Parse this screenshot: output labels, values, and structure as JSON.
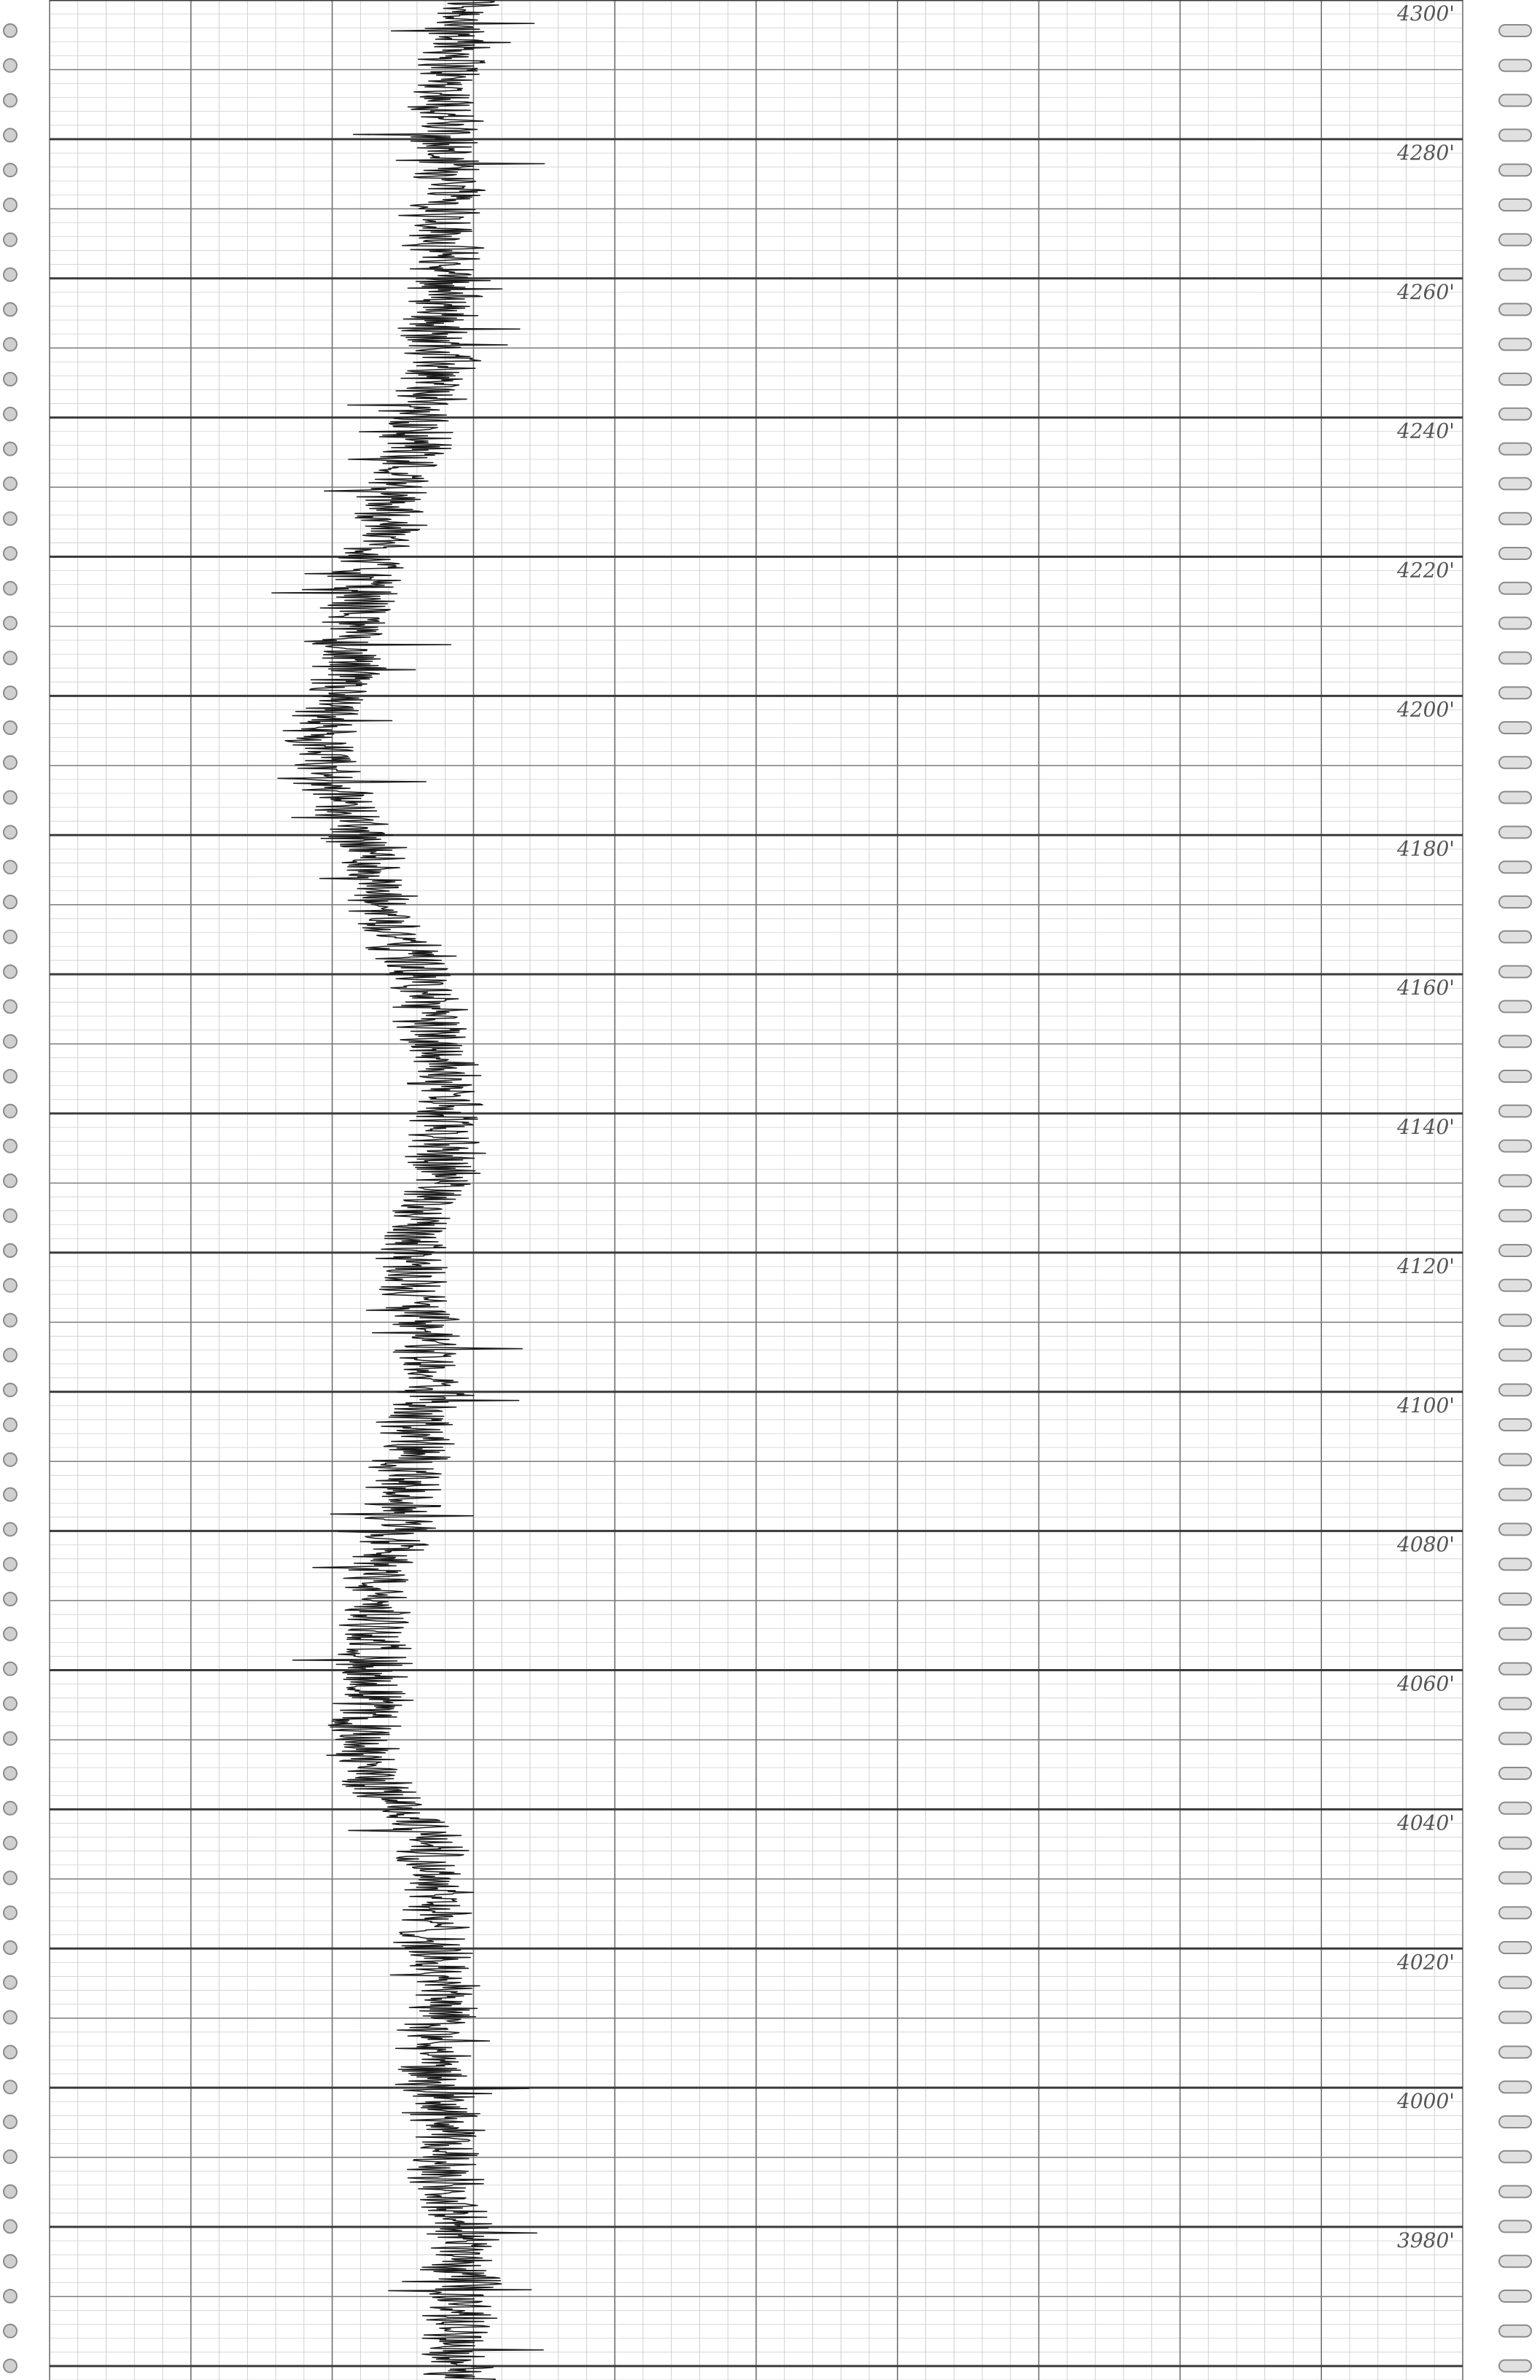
{
  "sheet": {
    "paper_color": "#ffffff",
    "grid_color": "#6f6f6f",
    "trace_color": "#1a1a1a",
    "hole_color": "#8a8a8a"
  },
  "chart_data": {
    "type": "line",
    "title": "",
    "xlabel": "",
    "ylabel": "",
    "depth_direction": "decreasing-downward",
    "ylim": [
      3958,
      4300
    ],
    "grid": true,
    "x_divisions": 10,
    "depth_labels": [
      "4300'",
      "4280'",
      "4260'",
      "4240'",
      "4220'",
      "4200'",
      "4180'",
      "4160'",
      "4140'",
      "4120'",
      "4100'",
      "4080'",
      "4060'",
      "4040'",
      "4020'",
      "4000'",
      "3980'"
    ],
    "label_depths": [
      4300,
      4280,
      4260,
      4240,
      4220,
      4200,
      4180,
      4160,
      4140,
      4120,
      4100,
      4080,
      4060,
      4040,
      4020,
      4000,
      3980
    ],
    "xlim": [
      0,
      10
    ],
    "series": [
      {
        "depth": [
          4300,
          4296,
          4292,
          4288,
          4284,
          4280,
          4276,
          4272,
          4268,
          4264,
          4260,
          4256,
          4252,
          4248,
          4244,
          4240,
          4236,
          4232,
          4228,
          4224,
          4220,
          4216,
          4212,
          4208,
          4204,
          4200,
          4196,
          4192,
          4188,
          4184,
          4180,
          4176,
          4172,
          4168,
          4164,
          4160,
          4156,
          4152,
          4148,
          4144,
          4140,
          4136,
          4132,
          4128,
          4124,
          4120,
          4116,
          4112,
          4108,
          4104,
          4100,
          4096,
          4092,
          4088,
          4084,
          4080,
          4076,
          4072,
          4068,
          4064,
          4060,
          4056,
          4052,
          4048,
          4044,
          4040,
          4036,
          4032,
          4028,
          4024,
          4020,
          4016,
          4012,
          4008,
          4004,
          4000,
          3996,
          3992,
          3988,
          3984,
          3980,
          3976,
          3972,
          3968,
          3964,
          3960
        ],
        "value": [
          3.0,
          2.9,
          2.9,
          2.8,
          2.8,
          2.8,
          2.8,
          2.9,
          2.8,
          2.8,
          2.8,
          2.8,
          2.7,
          2.8,
          2.7,
          2.6,
          2.6,
          2.5,
          2.4,
          2.4,
          2.3,
          2.2,
          2.2,
          2.1,
          2.1,
          2.0,
          1.9,
          1.9,
          2.0,
          2.1,
          2.2,
          2.3,
          2.3,
          2.4,
          2.5,
          2.6,
          2.7,
          2.7,
          2.8,
          2.8,
          2.8,
          2.8,
          2.8,
          2.7,
          2.6,
          2.6,
          2.6,
          2.6,
          2.7,
          2.7,
          2.7,
          2.6,
          2.6,
          2.5,
          2.5,
          2.5,
          2.4,
          2.3,
          2.3,
          2.3,
          2.3,
          2.3,
          2.2,
          2.2,
          2.3,
          2.5,
          2.7,
          2.7,
          2.8,
          2.7,
          2.7,
          2.8,
          2.8,
          2.7,
          2.7,
          2.7,
          2.8,
          2.8,
          2.8,
          2.8,
          2.9,
          2.9,
          2.9,
          2.9,
          2.9,
          2.9
        ]
      }
    ]
  }
}
